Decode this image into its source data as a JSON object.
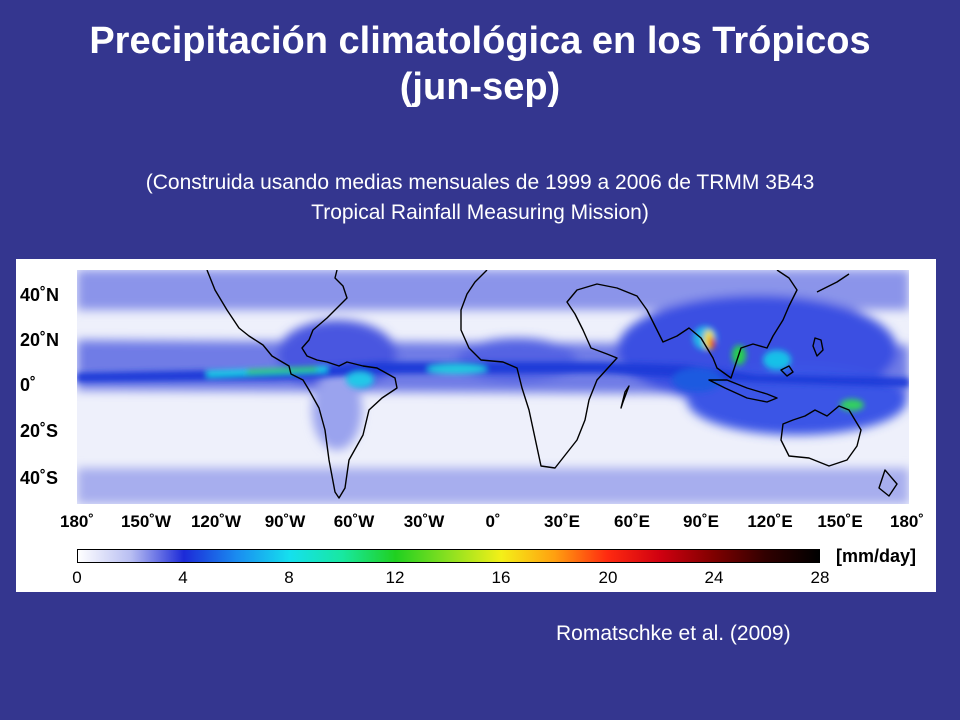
{
  "title": "Precipitación climatológica en los Trópicos",
  "title_line2": "(jun-sep)",
  "subtitle_line1": "(Construida usando medias mensuales de 1999 a 2006 de TRMM 3B43",
  "subtitle_line2": "Tropical Rainfall Measuring Mission)",
  "credit": "Romatschke et al. (2009)",
  "colors": {
    "background": "#34368f",
    "text": "#ffffff",
    "panel": "#ffffff",
    "ocean_dry": "#eef0fb",
    "rain_low": "#3348e0",
    "coastline": "#000000"
  },
  "map": {
    "lat_labels": [
      "40˚N",
      "20˚N",
      "0˚",
      "20˚S",
      "40˚S"
    ],
    "lon_labels": [
      "180˚",
      "150˚W",
      "120˚W",
      "90˚W",
      "60˚W",
      "30˚W",
      "0˚",
      "30˚E",
      "60˚E",
      "90˚E",
      "120˚E",
      "150˚E",
      "180˚"
    ]
  },
  "colorbar": {
    "unit": "[mm/day]",
    "ticks": [
      "0",
      "4",
      "8",
      "12",
      "16",
      "20",
      "24",
      "28"
    ],
    "range": [
      0,
      28
    ],
    "stops": [
      {
        "value": 0,
        "color": "#ffffff"
      },
      {
        "value": 2,
        "color": "#b8bef2"
      },
      {
        "value": 4,
        "color": "#1c2ad8"
      },
      {
        "value": 6,
        "color": "#1a8cf0"
      },
      {
        "value": 8,
        "color": "#15e0ee"
      },
      {
        "value": 10,
        "color": "#18e8a0"
      },
      {
        "value": 12,
        "color": "#20d020"
      },
      {
        "value": 14,
        "color": "#8ae020"
      },
      {
        "value": 16,
        "color": "#f4f018"
      },
      {
        "value": 18,
        "color": "#ffa010"
      },
      {
        "value": 20,
        "color": "#ff2a10"
      },
      {
        "value": 22,
        "color": "#d00010"
      },
      {
        "value": 24,
        "color": "#800000"
      },
      {
        "value": 26,
        "color": "#300000"
      },
      {
        "value": 28,
        "color": "#000000"
      }
    ]
  }
}
